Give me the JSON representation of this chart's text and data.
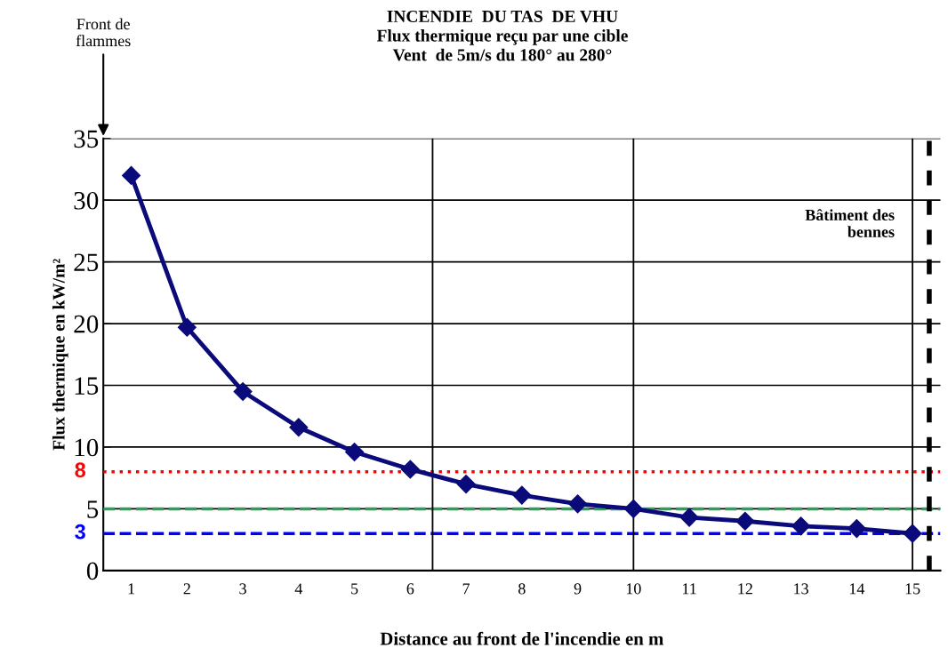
{
  "chart_data": {
    "type": "line",
    "title": "INCENDIE  DU TAS  DE VHU\nFlux thermique reçu par une cible\nVent  de 5m/s du 180° au 280°",
    "xlabel": "Distance au front de l'incendie en m",
    "ylabel": "Flux thermique en kW/m²",
    "x": [
      1,
      2,
      3,
      4,
      5,
      6,
      7,
      8,
      9,
      10,
      11,
      12,
      13,
      14,
      15
    ],
    "series": [
      {
        "color": "#0a0a7a",
        "values": [
          32.0,
          19.7,
          14.5,
          11.6,
          9.6,
          8.2,
          7.0,
          6.1,
          5.4,
          5.0,
          4.3,
          4.0,
          3.6,
          3.4,
          3.0
        ]
      }
    ],
    "xlim": [
      0.5,
      15.5
    ],
    "xticks": [
      1,
      2,
      3,
      4,
      5,
      6,
      7,
      8,
      9,
      10,
      11,
      12,
      13,
      14,
      15
    ],
    "ylim": [
      0,
      35
    ],
    "yticks": [
      0,
      5,
      10,
      15,
      20,
      25,
      30,
      35
    ],
    "grid": "y",
    "marker": "diamond",
    "line_style": "solid",
    "ref_lines": [
      {
        "axis": "y",
        "value": 8,
        "label": "8",
        "color": "#ff0000",
        "line_style": "dotted"
      },
      {
        "axis": "y",
        "value": 5,
        "color": "#2e9e5b",
        "line_style": "dashed"
      },
      {
        "axis": "y",
        "value": 3,
        "label": "3",
        "color": "#0000ff",
        "line_style": "dashed"
      },
      {
        "axis": "x",
        "value": 6.4,
        "color": "#000000",
        "line_style": "solid"
      },
      {
        "axis": "x",
        "value": 10,
        "color": "#000000",
        "line_style": "solid"
      },
      {
        "axis": "x",
        "value": 15,
        "color": "#000000",
        "line_style": "solid"
      },
      {
        "axis": "x",
        "value": 15.3,
        "color": "#000000",
        "line_style": "dashed"
      }
    ],
    "annotations": [
      "Front de\nflammes",
      {
        "text": "Bâtiment des\nbennes",
        "x": 15.3,
        "y": 28
      }
    ]
  }
}
